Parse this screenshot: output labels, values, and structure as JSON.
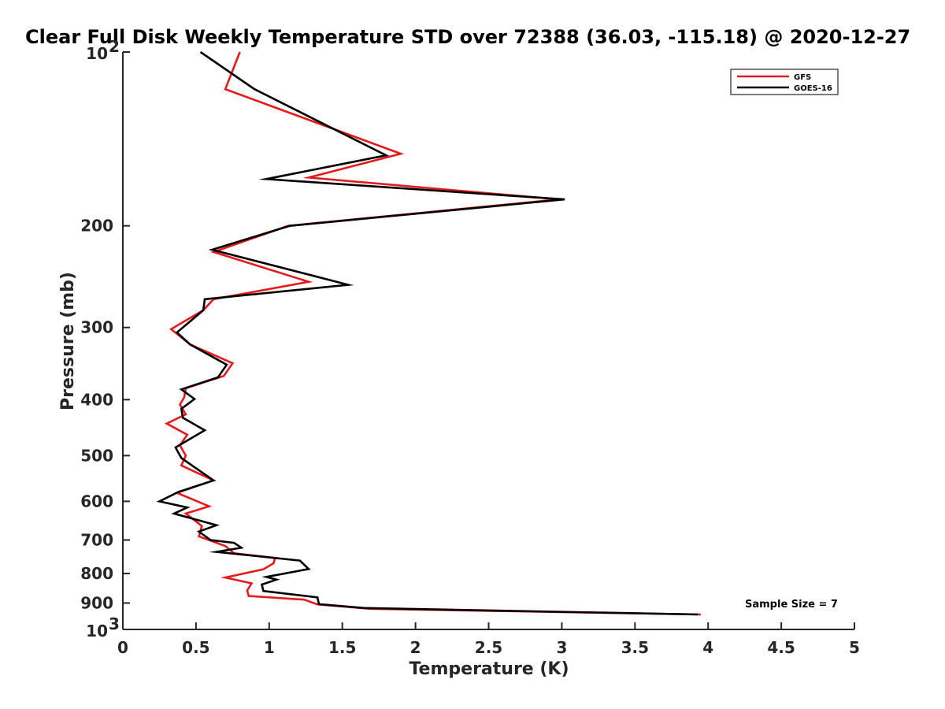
{
  "chart_data": {
    "type": "line",
    "title": "Clear Full Disk Weekly Temperature STD over 72388 (36.03, -115.18) @ 2020-12-27",
    "xlabel": "Temperature (K)",
    "ylabel": "Pressure (mb)",
    "xlim": [
      0,
      5
    ],
    "ylim": [
      100,
      1000
    ],
    "y_scale": "log",
    "y_reversed": true,
    "x_ticks": [
      "0",
      "0.5",
      "1",
      "1.5",
      "2",
      "2.5",
      "3",
      "3.5",
      "4",
      "4.5",
      "5"
    ],
    "y_ticks": [
      {
        "value": 100,
        "base": "10",
        "exp": "2"
      },
      {
        "value": 200,
        "label": "200"
      },
      {
        "value": 300,
        "label": "300"
      },
      {
        "value": 400,
        "label": "400"
      },
      {
        "value": 500,
        "label": "500"
      },
      {
        "value": 600,
        "label": "600"
      },
      {
        "value": 700,
        "label": "700"
      },
      {
        "value": 800,
        "label": "800"
      },
      {
        "value": 900,
        "label": "900"
      },
      {
        "value": 1000,
        "base": "10",
        "exp": "3"
      }
    ],
    "legend_position": "top-right",
    "grid": false,
    "annotation": "Sample Size = 7",
    "series": [
      {
        "name": "GFS",
        "color": "#e41a1c",
        "points": [
          [
            0.8,
            100
          ],
          [
            0.7,
            116
          ],
          [
            1.9,
            150
          ],
          [
            1.27,
            165
          ],
          [
            2.98,
            180
          ],
          [
            1.13,
            200
          ],
          [
            0.62,
            222
          ],
          [
            1.27,
            250
          ],
          [
            0.62,
            268
          ],
          [
            0.55,
            280
          ],
          [
            0.33,
            302
          ],
          [
            0.46,
            321
          ],
          [
            0.75,
            346
          ],
          [
            0.69,
            364
          ],
          [
            0.43,
            382
          ],
          [
            0.42,
            396
          ],
          [
            0.39,
            408
          ],
          [
            0.43,
            424
          ],
          [
            0.3,
            440
          ],
          [
            0.44,
            460
          ],
          [
            0.39,
            480
          ],
          [
            0.43,
            500
          ],
          [
            0.4,
            520
          ],
          [
            0.62,
            552
          ],
          [
            0.37,
            580
          ],
          [
            0.59,
            612
          ],
          [
            0.43,
            630
          ],
          [
            0.54,
            662
          ],
          [
            0.52,
            690
          ],
          [
            0.7,
            717
          ],
          [
            0.76,
            738
          ],
          [
            1.04,
            752
          ],
          [
            1.03,
            768
          ],
          [
            0.96,
            787
          ],
          [
            0.7,
            813
          ],
          [
            0.88,
            832
          ],
          [
            0.85,
            856
          ],
          [
            0.86,
            875
          ],
          [
            1.24,
            888
          ],
          [
            1.33,
            905
          ],
          [
            1.69,
            921
          ],
          [
            3.95,
            942
          ]
        ]
      },
      {
        "name": "GOES-16",
        "color": "#000000",
        "points": [
          [
            0.53,
            100
          ],
          [
            0.9,
            116
          ],
          [
            1.8,
            151
          ],
          [
            0.98,
            166
          ],
          [
            3.02,
            180
          ],
          [
            1.14,
            200
          ],
          [
            0.61,
            220
          ],
          [
            1.54,
            253
          ],
          [
            0.56,
            268
          ],
          [
            0.55,
            280
          ],
          [
            0.37,
            306
          ],
          [
            0.46,
            321
          ],
          [
            0.71,
            348
          ],
          [
            0.65,
            366
          ],
          [
            0.4,
            384
          ],
          [
            0.49,
            399
          ],
          [
            0.4,
            415
          ],
          [
            0.41,
            430
          ],
          [
            0.56,
            452
          ],
          [
            0.36,
            484
          ],
          [
            0.4,
            505
          ],
          [
            0.62,
            552
          ],
          [
            0.38,
            578
          ],
          [
            0.25,
            600
          ],
          [
            0.44,
            615
          ],
          [
            0.35,
            630
          ],
          [
            0.64,
            660
          ],
          [
            0.52,
            677
          ],
          [
            0.6,
            700
          ],
          [
            0.76,
            708
          ],
          [
            0.81,
            722
          ],
          [
            0.64,
            734
          ],
          [
            1.21,
            760
          ],
          [
            1.27,
            786
          ],
          [
            0.98,
            811
          ],
          [
            1.05,
            820
          ],
          [
            0.95,
            836
          ],
          [
            0.96,
            858
          ],
          [
            1.33,
            880
          ],
          [
            1.34,
            904
          ],
          [
            1.65,
            918
          ],
          [
            3.93,
            942
          ]
        ]
      }
    ]
  }
}
